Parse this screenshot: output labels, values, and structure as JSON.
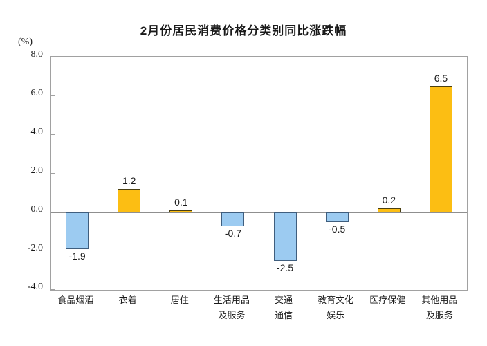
{
  "chart_data": {
    "type": "bar",
    "title": "2月份居民消费价格分类别同比涨跌幅",
    "unit_label": "(%)",
    "categories": [
      "食品烟酒",
      "衣着",
      "居住",
      "生活用品及服务",
      "交通通信",
      "教育文化娱乐",
      "医疗保健",
      "其他用品及服务"
    ],
    "category_label_lines": [
      [
        "食品烟酒"
      ],
      [
        "衣着"
      ],
      [
        "居住"
      ],
      [
        "生活用品",
        "及服务"
      ],
      [
        "交通",
        "通信"
      ],
      [
        "教育文化",
        "娱乐"
      ],
      [
        "医疗保健"
      ],
      [
        "其他用品",
        "及服务"
      ]
    ],
    "values": [
      -1.9,
      1.2,
      0.1,
      -0.7,
      -2.5,
      -0.5,
      0.2,
      6.5
    ],
    "value_labels": [
      "-1.9",
      "1.2",
      "0.1",
      "-0.7",
      "-2.5",
      "-0.5",
      "0.2",
      "6.5"
    ],
    "ylabel": "",
    "xlabel": "",
    "ylim": [
      -4.0,
      8.0
    ],
    "ytick_step": 2.0,
    "ytick_labels": [
      "8.0",
      "6.0",
      "4.0",
      "2.0",
      "0.0",
      "-2.0",
      "-4.0"
    ],
    "grid": false,
    "legend": false,
    "colors": {
      "positive_fill": "#FCBE13",
      "positive_border": "#4a3f10",
      "negative_fill": "#9CCBF1",
      "negative_border": "#3f5e7e",
      "frame": "#a1a1a1",
      "zero_line": "#8f8f8f",
      "text": "#1a1a1a"
    }
  }
}
